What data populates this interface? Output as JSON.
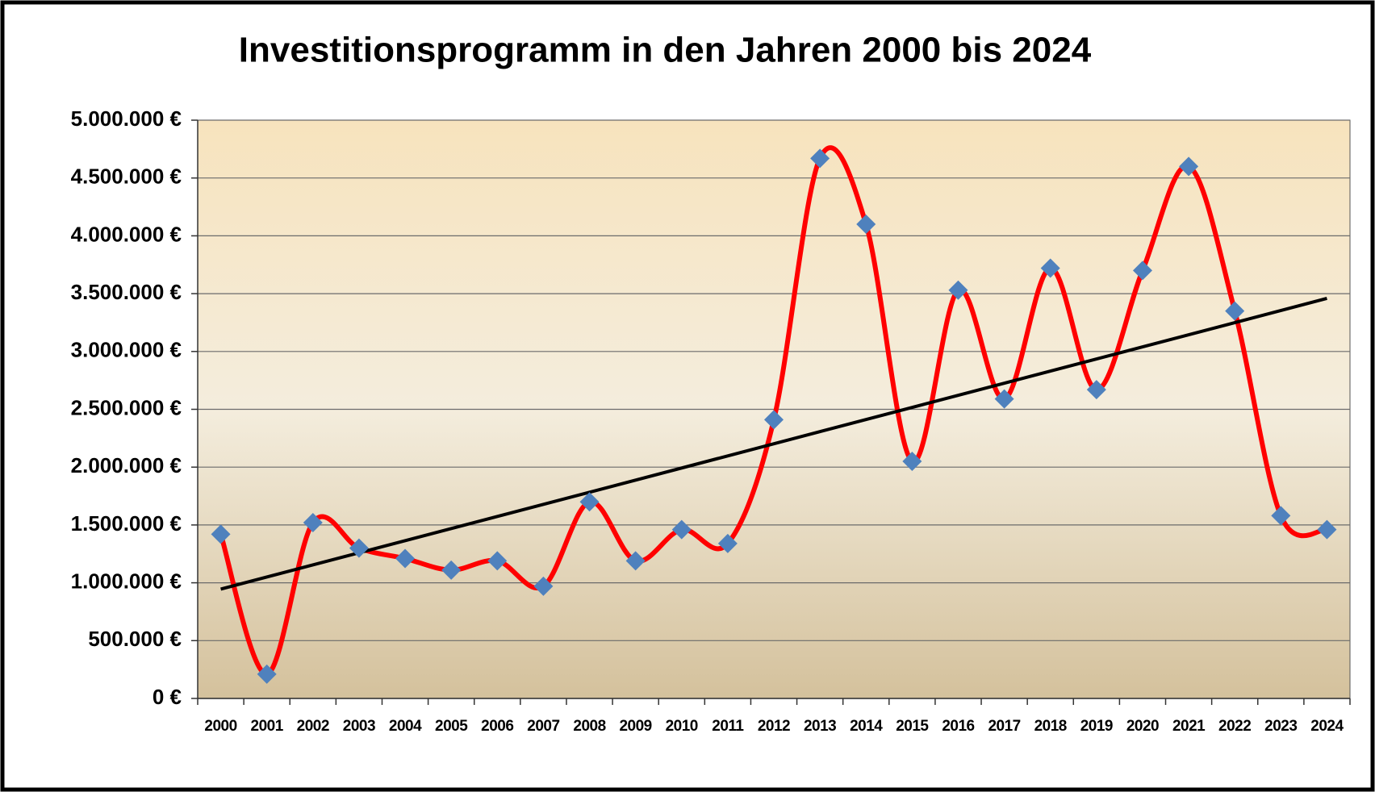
{
  "chart_data": {
    "type": "line",
    "title": "Investitionsprogramm in den Jahren 2000 bis 2024",
    "categories": [
      "2000",
      "2001",
      "2002",
      "2003",
      "2004",
      "2005",
      "2006",
      "2007",
      "2008",
      "2009",
      "2010",
      "2011",
      "2012",
      "2013",
      "2014",
      "2015",
      "2016",
      "2017",
      "2018",
      "2019",
      "2020",
      "2021",
      "2022",
      "2023",
      "2024"
    ],
    "series": [
      {
        "color": "#ff0000",
        "marker_color": "#4f81bd",
        "values": [
          1420000,
          210000,
          1520000,
          1300000,
          1210000,
          1110000,
          1190000,
          970000,
          1700000,
          1190000,
          1460000,
          1340000,
          2410000,
          4670000,
          4100000,
          2050000,
          3530000,
          2590000,
          3720000,
          2670000,
          3700000,
          4600000,
          3350000,
          1580000,
          1460000
        ]
      }
    ],
    "trendline": true,
    "trend_color": "#000000",
    "smooth": true,
    "ylim": [
      0,
      5000000
    ],
    "yticks": [
      {
        "value": 0,
        "label": "0 €"
      },
      {
        "value": 500000,
        "label": "500.000 €"
      },
      {
        "value": 1000000,
        "label": "1.000.000 €"
      },
      {
        "value": 1500000,
        "label": "1.500.000 €"
      },
      {
        "value": 2000000,
        "label": "2.000.000 €"
      },
      {
        "value": 2500000,
        "label": "2.500.000 €"
      },
      {
        "value": 3000000,
        "label": "3.000.000 €"
      },
      {
        "value": 3500000,
        "label": "3.500.000 €"
      },
      {
        "value": 4000000,
        "label": "4.000.000 €"
      },
      {
        "value": 4500000,
        "label": "4.500.000 €"
      },
      {
        "value": 5000000,
        "label": "5.000.000 €"
      }
    ],
    "grid": true
  }
}
